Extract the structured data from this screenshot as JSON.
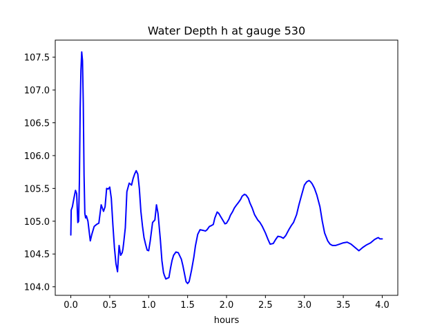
{
  "chart_data": {
    "type": "line",
    "title": "Water Depth h at gauge 530",
    "xlabel": "hours",
    "ylabel": "",
    "xlim": [
      -0.2,
      4.2
    ],
    "ylim": [
      103.87,
      107.76
    ],
    "grid": false,
    "x_ticks": [
      0.0,
      0.5,
      1.0,
      1.5,
      2.0,
      2.5,
      3.0,
      3.5,
      4.0
    ],
    "x_tick_labels": [
      "0.0",
      "0.5",
      "1.0",
      "1.5",
      "2.0",
      "2.5",
      "3.0",
      "3.5",
      "4.0"
    ],
    "y_ticks": [
      104.0,
      104.5,
      105.0,
      105.5,
      106.0,
      106.5,
      107.0,
      107.5
    ],
    "y_tick_labels": [
      "104.0",
      "104.5",
      "105.0",
      "105.5",
      "106.0",
      "106.5",
      "107.0",
      "107.5"
    ],
    "series": [
      {
        "color": "#0000ff",
        "x": [
          0.0,
          0.005,
          0.02,
          0.04,
          0.06,
          0.075,
          0.09,
          0.1,
          0.11,
          0.12,
          0.13,
          0.14,
          0.15,
          0.16,
          0.17,
          0.18,
          0.19,
          0.2,
          0.22,
          0.25,
          0.27,
          0.3,
          0.33,
          0.36,
          0.39,
          0.42,
          0.44,
          0.46,
          0.48,
          0.5,
          0.52,
          0.54,
          0.56,
          0.58,
          0.6,
          0.62,
          0.64,
          0.66,
          0.67,
          0.68,
          0.7,
          0.72,
          0.75,
          0.78,
          0.8,
          0.82,
          0.84,
          0.86,
          0.88,
          0.9,
          0.92,
          0.94,
          0.96,
          0.98,
          1.0,
          1.02,
          1.05,
          1.08,
          1.1,
          1.12,
          1.15,
          1.17,
          1.19,
          1.2,
          1.22,
          1.24,
          1.26,
          1.28,
          1.3,
          1.32,
          1.35,
          1.38,
          1.4,
          1.42,
          1.44,
          1.46,
          1.48,
          1.5,
          1.52,
          1.55,
          1.58,
          1.6,
          1.63,
          1.66,
          1.7,
          1.73,
          1.75,
          1.78,
          1.8,
          1.83,
          1.85,
          1.88,
          1.9,
          1.92,
          1.95,
          1.98,
          2.0,
          2.03,
          2.05,
          2.08,
          2.1,
          2.13,
          2.15,
          2.18,
          2.2,
          2.23,
          2.25,
          2.28,
          2.3,
          2.33,
          2.36,
          2.4,
          2.43,
          2.46,
          2.5,
          2.53,
          2.56,
          2.6,
          2.63,
          2.66,
          2.7,
          2.73,
          2.76,
          2.8,
          2.83,
          2.86,
          2.9,
          2.93,
          2.96,
          3.0,
          3.03,
          3.06,
          3.08,
          3.1,
          3.13,
          3.16,
          3.2,
          3.23,
          3.26,
          3.3,
          3.33,
          3.36,
          3.4,
          3.45,
          3.5,
          3.55,
          3.6,
          3.65,
          3.7,
          3.72,
          3.75,
          3.8,
          3.85,
          3.9,
          3.93,
          3.95,
          3.97,
          4.0
        ],
        "y": [
          104.79,
          105.17,
          105.22,
          105.35,
          105.47,
          105.42,
          104.98,
          105.0,
          105.6,
          106.7,
          107.3,
          107.58,
          107.45,
          106.8,
          105.7,
          105.12,
          105.05,
          105.08,
          105.0,
          104.7,
          104.8,
          104.92,
          104.95,
          104.97,
          105.25,
          105.15,
          105.22,
          105.5,
          105.49,
          105.52,
          105.35,
          104.95,
          104.6,
          104.35,
          104.23,
          104.63,
          104.48,
          104.52,
          104.58,
          104.68,
          104.9,
          105.45,
          105.58,
          105.55,
          105.65,
          105.72,
          105.77,
          105.72,
          105.5,
          105.15,
          104.93,
          104.75,
          104.65,
          104.56,
          104.55,
          104.7,
          104.98,
          105.02,
          105.25,
          105.12,
          104.72,
          104.4,
          104.22,
          104.18,
          104.12,
          104.13,
          104.14,
          104.28,
          104.4,
          104.48,
          104.53,
          104.52,
          104.47,
          104.42,
          104.32,
          104.2,
          104.08,
          104.05,
          104.08,
          104.25,
          104.45,
          104.62,
          104.8,
          104.87,
          104.86,
          104.85,
          104.87,
          104.92,
          104.93,
          104.95,
          105.05,
          105.14,
          105.12,
          105.08,
          105.02,
          104.96,
          104.97,
          105.03,
          105.09,
          105.15,
          105.2,
          105.25,
          105.28,
          105.33,
          105.38,
          105.41,
          105.4,
          105.35,
          105.28,
          105.2,
          105.1,
          105.02,
          104.98,
          104.92,
          104.82,
          104.73,
          104.65,
          104.66,
          104.72,
          104.77,
          104.76,
          104.74,
          104.78,
          104.87,
          104.93,
          104.98,
          105.1,
          105.25,
          105.38,
          105.55,
          105.6,
          105.62,
          105.6,
          105.57,
          105.5,
          105.4,
          105.22,
          105.0,
          104.82,
          104.7,
          104.65,
          104.63,
          104.63,
          104.65,
          104.67,
          104.68,
          104.65,
          104.6,
          104.55,
          104.57,
          104.6,
          104.64,
          104.67,
          104.72,
          104.74,
          104.75,
          104.73,
          104.73
        ]
      }
    ]
  }
}
